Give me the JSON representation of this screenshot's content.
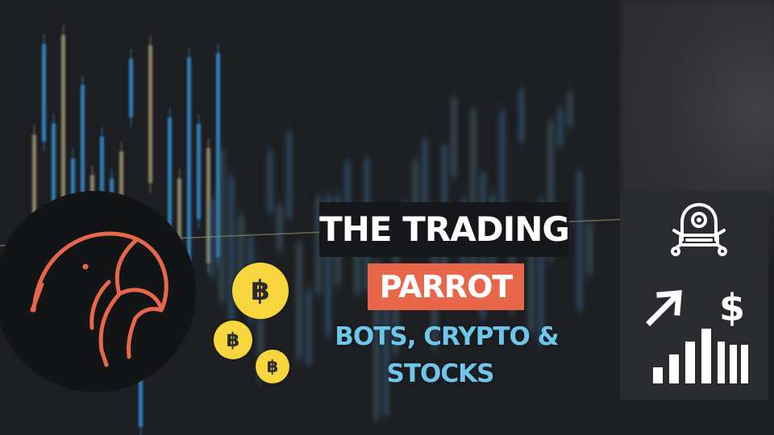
{
  "brand": {
    "title_line1": "THE TRADING",
    "title_line2": "PARROT",
    "tagline_line1": "BOTS, CRYPTO &",
    "tagline_line2": "STOCKS"
  },
  "coins": {
    "symbol": "฿"
  },
  "colors": {
    "accent_orange": "#e8674a",
    "tagline_blue": "#6ec6ea",
    "coin_yellow": "#f6d63c",
    "background": "#1d1e21"
  },
  "icons": {
    "logo": "parrot-icon",
    "bot": "robot-icon",
    "growth": "growth-chart-icon",
    "coin": "bitcoin-icon"
  }
}
